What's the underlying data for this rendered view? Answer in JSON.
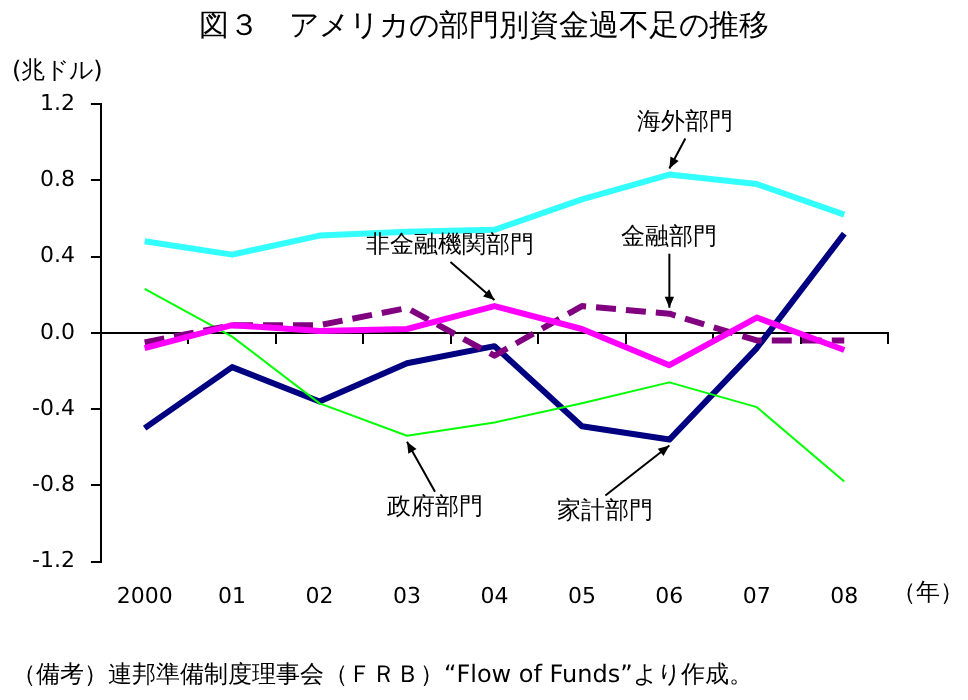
{
  "chart_data": {
    "type": "line",
    "title": "図３　アメリカの部門別資金過不足の推移",
    "ylabel": "(兆ドル)",
    "xlabel": "（年）",
    "annotations": [
      "（備考）連邦準備制度理事会（ＦＲＢ）“Flow of Funds”より作成。"
    ],
    "categories": [
      "2000",
      "01",
      "02",
      "03",
      "04",
      "05",
      "06",
      "07",
      "08"
    ],
    "series": [
      {
        "name": "海外部門",
        "color": "#33ffff",
        "values": [
          0.48,
          0.41,
          0.51,
          0.53,
          0.54,
          0.7,
          0.83,
          0.78,
          0.62
        ]
      },
      {
        "name": "非金融機関部門",
        "color": "#ff00ff",
        "values": [
          -0.08,
          0.04,
          0.01,
          0.02,
          0.14,
          0.02,
          -0.17,
          0.08,
          -0.09
        ]
      },
      {
        "name": "金融部門",
        "color": "#800080",
        "line_style": "dashed",
        "values": [
          -0.05,
          0.04,
          0.04,
          0.13,
          -0.12,
          0.14,
          0.1,
          -0.04,
          -0.04
        ]
      },
      {
        "name": "政府部門",
        "color": "#00ff00",
        "values": [
          0.23,
          -0.02,
          -0.37,
          -0.54,
          -0.47,
          -0.37,
          -0.26,
          -0.39,
          -0.78
        ]
      },
      {
        "name": "家計部門",
        "color": "#000080",
        "values": [
          -0.5,
          -0.18,
          -0.36,
          -0.16,
          -0.07,
          -0.49,
          -0.56,
          -0.08,
          0.52
        ]
      }
    ],
    "ylim": [
      -1.2,
      1.2
    ],
    "yticks": [
      -1.2,
      -0.8,
      -0.4,
      {
        "value": 0,
        "label": "0.0"
      },
      0.4,
      0.8,
      1.2
    ],
    "legend": false,
    "marker": "none",
    "line_style": "solid"
  }
}
